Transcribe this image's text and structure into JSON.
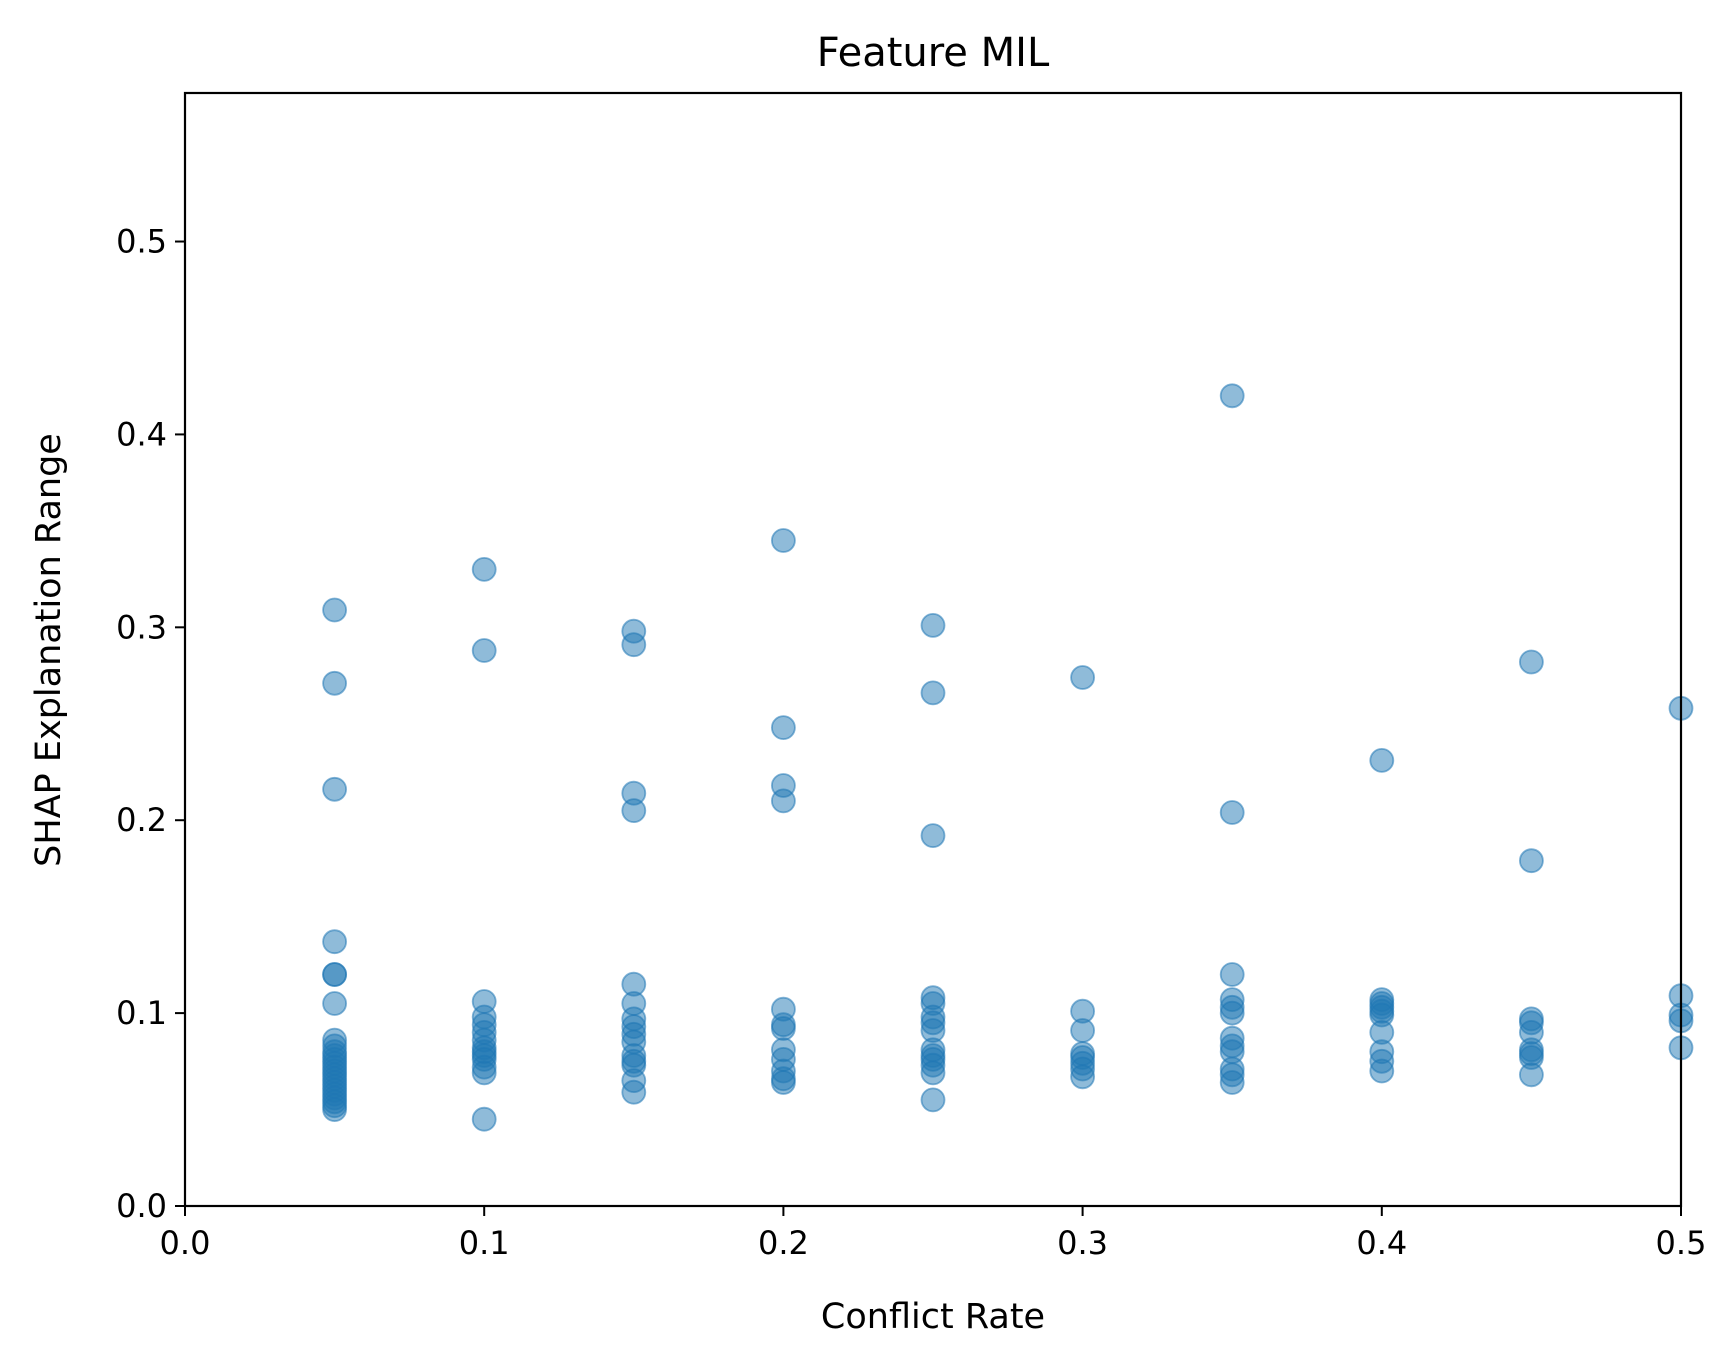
{
  "chart_data": {
    "type": "scatter",
    "title": "Feature MIL",
    "xlabel": "Conflict Rate",
    "ylabel": "SHAP Explanation Range",
    "xlim": [
      0.0,
      0.5
    ],
    "ylim": [
      0.0,
      0.577
    ],
    "xticks": [
      "0.0",
      "0.1",
      "0.2",
      "0.3",
      "0.4",
      "0.5"
    ],
    "yticks": [
      "0.0",
      "0.1",
      "0.2",
      "0.3",
      "0.4",
      "0.5"
    ],
    "grid": false,
    "marker_color": "#1f77b4",
    "marker_alpha": 0.5,
    "points": [
      [
        0.05,
        0.309
      ],
      [
        0.05,
        0.271
      ],
      [
        0.05,
        0.216
      ],
      [
        0.05,
        0.137
      ],
      [
        0.05,
        0.12
      ],
      [
        0.05,
        0.12
      ],
      [
        0.05,
        0.105
      ],
      [
        0.05,
        0.086
      ],
      [
        0.05,
        0.083
      ],
      [
        0.05,
        0.08
      ],
      [
        0.05,
        0.078
      ],
      [
        0.05,
        0.076
      ],
      [
        0.05,
        0.074
      ],
      [
        0.05,
        0.072
      ],
      [
        0.05,
        0.07
      ],
      [
        0.05,
        0.068
      ],
      [
        0.05,
        0.066
      ],
      [
        0.05,
        0.064
      ],
      [
        0.05,
        0.062
      ],
      [
        0.05,
        0.06
      ],
      [
        0.05,
        0.058
      ],
      [
        0.05,
        0.056
      ],
      [
        0.05,
        0.054
      ],
      [
        0.05,
        0.052
      ],
      [
        0.05,
        0.05
      ],
      [
        0.1,
        0.33
      ],
      [
        0.1,
        0.288
      ],
      [
        0.1,
        0.106
      ],
      [
        0.1,
        0.098
      ],
      [
        0.1,
        0.094
      ],
      [
        0.1,
        0.09
      ],
      [
        0.1,
        0.086
      ],
      [
        0.1,
        0.082
      ],
      [
        0.1,
        0.08
      ],
      [
        0.1,
        0.078
      ],
      [
        0.1,
        0.076
      ],
      [
        0.1,
        0.072
      ],
      [
        0.1,
        0.069
      ],
      [
        0.1,
        0.045
      ],
      [
        0.15,
        0.298
      ],
      [
        0.15,
        0.291
      ],
      [
        0.15,
        0.214
      ],
      [
        0.15,
        0.205
      ],
      [
        0.15,
        0.115
      ],
      [
        0.15,
        0.105
      ],
      [
        0.15,
        0.097
      ],
      [
        0.15,
        0.093
      ],
      [
        0.15,
        0.089
      ],
      [
        0.15,
        0.085
      ],
      [
        0.15,
        0.078
      ],
      [
        0.15,
        0.075
      ],
      [
        0.15,
        0.073
      ],
      [
        0.15,
        0.065
      ],
      [
        0.15,
        0.059
      ],
      [
        0.2,
        0.345
      ],
      [
        0.2,
        0.248
      ],
      [
        0.2,
        0.218
      ],
      [
        0.2,
        0.21
      ],
      [
        0.2,
        0.102
      ],
      [
        0.2,
        0.094
      ],
      [
        0.2,
        0.092
      ],
      [
        0.2,
        0.081
      ],
      [
        0.2,
        0.076
      ],
      [
        0.2,
        0.07
      ],
      [
        0.2,
        0.066
      ],
      [
        0.2,
        0.064
      ],
      [
        0.25,
        0.301
      ],
      [
        0.25,
        0.266
      ],
      [
        0.25,
        0.192
      ],
      [
        0.25,
        0.108
      ],
      [
        0.25,
        0.105
      ],
      [
        0.25,
        0.098
      ],
      [
        0.25,
        0.095
      ],
      [
        0.25,
        0.091
      ],
      [
        0.25,
        0.081
      ],
      [
        0.25,
        0.078
      ],
      [
        0.25,
        0.076
      ],
      [
        0.25,
        0.073
      ],
      [
        0.25,
        0.069
      ],
      [
        0.25,
        0.055
      ],
      [
        0.3,
        0.274
      ],
      [
        0.3,
        0.101
      ],
      [
        0.3,
        0.091
      ],
      [
        0.3,
        0.079
      ],
      [
        0.3,
        0.077
      ],
      [
        0.3,
        0.074
      ],
      [
        0.3,
        0.071
      ],
      [
        0.3,
        0.067
      ],
      [
        0.35,
        0.42
      ],
      [
        0.35,
        0.204
      ],
      [
        0.35,
        0.12
      ],
      [
        0.35,
        0.107
      ],
      [
        0.35,
        0.103
      ],
      [
        0.35,
        0.1
      ],
      [
        0.35,
        0.087
      ],
      [
        0.35,
        0.083
      ],
      [
        0.35,
        0.08
      ],
      [
        0.35,
        0.071
      ],
      [
        0.35,
        0.068
      ],
      [
        0.35,
        0.064
      ],
      [
        0.4,
        0.231
      ],
      [
        0.4,
        0.107
      ],
      [
        0.4,
        0.105
      ],
      [
        0.4,
        0.103
      ],
      [
        0.4,
        0.101
      ],
      [
        0.4,
        0.099
      ],
      [
        0.4,
        0.09
      ],
      [
        0.4,
        0.08
      ],
      [
        0.4,
        0.075
      ],
      [
        0.4,
        0.07
      ],
      [
        0.45,
        0.282
      ],
      [
        0.45,
        0.179
      ],
      [
        0.45,
        0.097
      ],
      [
        0.45,
        0.095
      ],
      [
        0.45,
        0.09
      ],
      [
        0.45,
        0.081
      ],
      [
        0.45,
        0.079
      ],
      [
        0.45,
        0.077
      ],
      [
        0.45,
        0.068
      ],
      [
        0.5,
        0.258
      ],
      [
        0.5,
        0.109
      ],
      [
        0.5,
        0.099
      ],
      [
        0.5,
        0.096
      ],
      [
        0.5,
        0.082
      ]
    ]
  }
}
